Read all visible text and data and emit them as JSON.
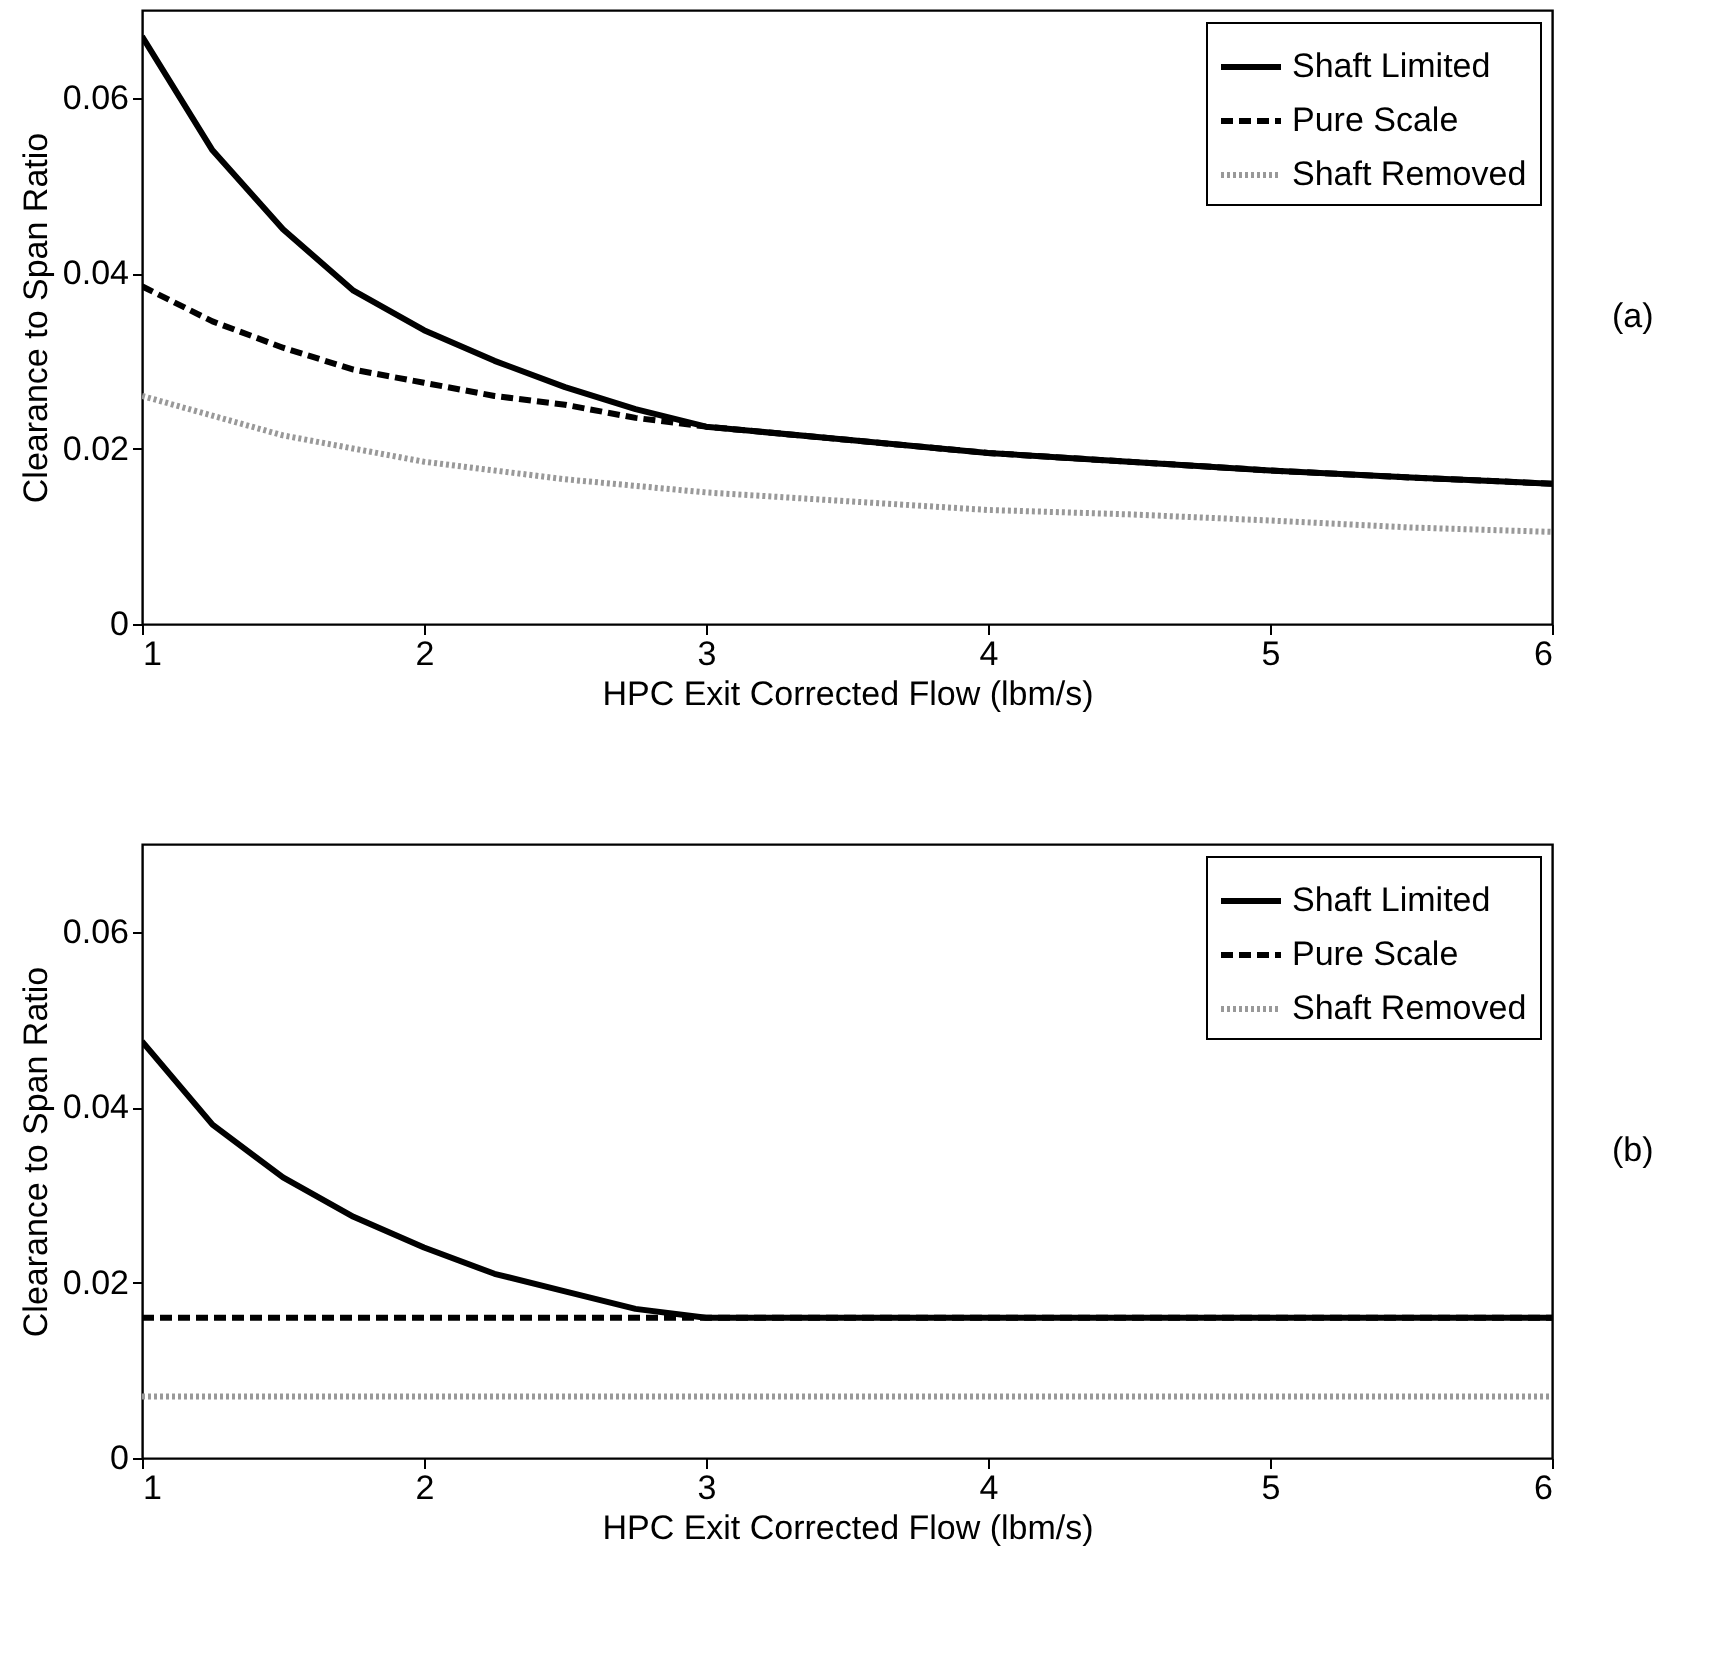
{
  "chart_data": [
    {
      "type": "line",
      "xlabel": "HPC Exit Corrected Flow (lbm/s)",
      "ylabel": "Clearance to Span Ratio",
      "xlim": [
        1,
        6
      ],
      "xticks": [
        1,
        2,
        3,
        4,
        5,
        6
      ],
      "ylim": [
        0,
        0.07
      ],
      "yticks": [
        0,
        0.02,
        0.04,
        0.06
      ],
      "grid": false,
      "legend": "top right",
      "annotations": [
        "(a)"
      ],
      "series": [
        {
          "name": "Shaft Limited",
          "color": "#000000",
          "line_style": "solid",
          "x": [
            1,
            1.25,
            1.5,
            1.75,
            2,
            2.25,
            2.5,
            2.75,
            3,
            3.5,
            4,
            4.5,
            5,
            5.5,
            6
          ],
          "values": [
            0.067,
            0.054,
            0.045,
            0.038,
            0.0335,
            0.03,
            0.027,
            0.0245,
            0.0225,
            0.021,
            0.0195,
            0.0185,
            0.0175,
            0.0167,
            0.016
          ]
        },
        {
          "name": "Pure Scale",
          "color": "#000000",
          "line_style": "dashed",
          "x": [
            1,
            1.25,
            1.5,
            1.75,
            2,
            2.25,
            2.5,
            2.75,
            3,
            3.5,
            4,
            4.5,
            5,
            5.5,
            6
          ],
          "values": [
            0.0385,
            0.0345,
            0.0315,
            0.029,
            0.0275,
            0.026,
            0.025,
            0.0235,
            0.0225,
            0.021,
            0.0195,
            0.0185,
            0.0175,
            0.0167,
            0.016
          ]
        },
        {
          "name": "Shaft Removed",
          "color": "#999999",
          "line_style": "dotted",
          "x": [
            1,
            1.5,
            2,
            2.5,
            3,
            3.5,
            4,
            4.5,
            5,
            5.5,
            6
          ],
          "values": [
            0.026,
            0.0215,
            0.0185,
            0.0165,
            0.015,
            0.014,
            0.013,
            0.0125,
            0.0118,
            0.011,
            0.0105
          ]
        }
      ]
    },
    {
      "type": "line",
      "xlabel": "HPC Exit Corrected Flow (lbm/s)",
      "ylabel": "Clearance to Span Ratio",
      "xlim": [
        1,
        6
      ],
      "xticks": [
        1,
        2,
        3,
        4,
        5,
        6
      ],
      "ylim": [
        0,
        0.07
      ],
      "yticks": [
        0,
        0.02,
        0.04,
        0.06
      ],
      "grid": false,
      "legend": "top right",
      "annotations": [
        "(b)"
      ],
      "series": [
        {
          "name": "Shaft Limited",
          "color": "#000000",
          "line_style": "solid",
          "x": [
            1,
            1.25,
            1.5,
            1.75,
            2,
            2.25,
            2.5,
            2.75,
            3,
            3.5,
            4,
            5,
            6
          ],
          "values": [
            0.0475,
            0.038,
            0.032,
            0.0275,
            0.024,
            0.021,
            0.019,
            0.017,
            0.016,
            0.016,
            0.016,
            0.016,
            0.016
          ]
        },
        {
          "name": "Pure Scale",
          "color": "#000000",
          "line_style": "dashed",
          "x": [
            1,
            6
          ],
          "values": [
            0.016,
            0.016
          ]
        },
        {
          "name": "Shaft Removed",
          "color": "#999999",
          "line_style": "dotted",
          "x": [
            1,
            6
          ],
          "values": [
            0.007,
            0.007
          ]
        }
      ]
    }
  ]
}
